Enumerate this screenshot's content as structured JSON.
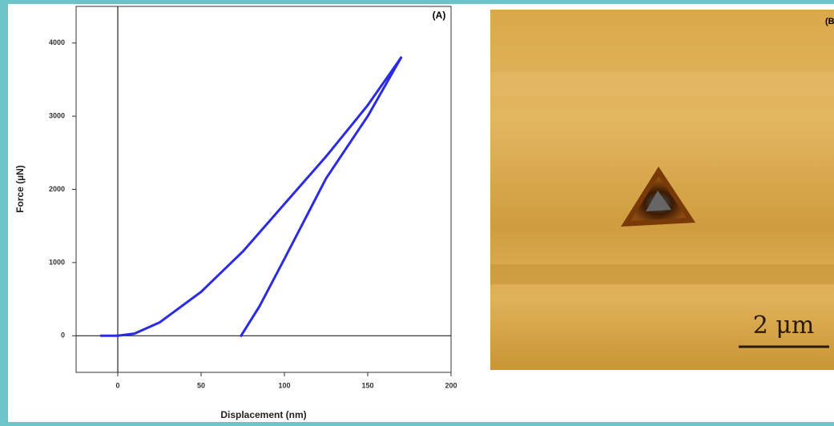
{
  "chart_data": {
    "type": "line",
    "panel_label": "(A)",
    "x_label": "Displacement (nm)",
    "y_label": "Force (µN)",
    "xlim": [
      -25,
      200
    ],
    "xticks": [
      0,
      50,
      100,
      150,
      200
    ],
    "ylim": [
      -500,
      4500
    ],
    "yticks": [
      0,
      1000,
      2000,
      3000,
      4000
    ],
    "grid": false,
    "series": [
      {
        "color": "#2b2be6",
        "x": [
          -10,
          0,
          10,
          25,
          50,
          75,
          100,
          125,
          150,
          170
        ],
        "values": [
          0,
          0,
          30,
          180,
          600,
          1150,
          1800,
          2450,
          3150,
          3800
        ]
      },
      {
        "color": "#2b2be6",
        "x": [
          74,
          85,
          100,
          125,
          150,
          170
        ],
        "values": [
          0,
          400,
          1050,
          2150,
          3000,
          3800
        ]
      }
    ]
  },
  "image": {
    "panel_label": "(B",
    "scale_label": "2 μm"
  }
}
